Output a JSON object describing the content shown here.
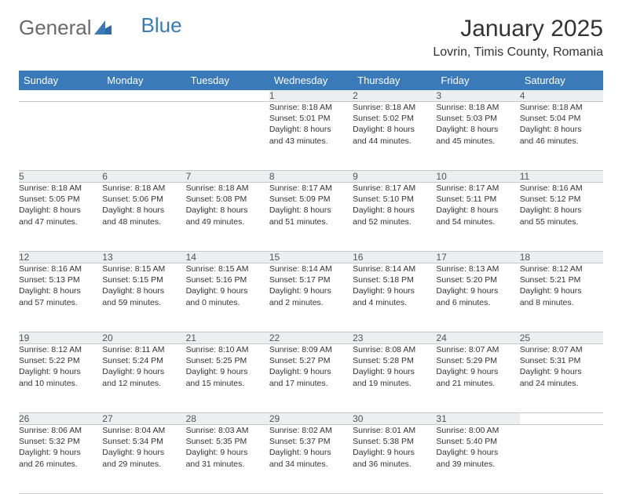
{
  "logo": {
    "text1": "General",
    "text2": "Blue"
  },
  "title": "January 2025",
  "location": "Lovrin, Timis County, Romania",
  "colors": {
    "header_bg": "#3a7ab8",
    "header_fg": "#ffffff",
    "daynum_bg": "#edeef0",
    "border": "#c8c8c8",
    "text": "#333333"
  },
  "weekdays": [
    "Sunday",
    "Monday",
    "Tuesday",
    "Wednesday",
    "Thursday",
    "Friday",
    "Saturday"
  ],
  "weeks": [
    [
      null,
      null,
      null,
      {
        "n": "1",
        "sr": "Sunrise: 8:18 AM",
        "ss": "Sunset: 5:01 PM",
        "d1": "Daylight: 8 hours",
        "d2": "and 43 minutes."
      },
      {
        "n": "2",
        "sr": "Sunrise: 8:18 AM",
        "ss": "Sunset: 5:02 PM",
        "d1": "Daylight: 8 hours",
        "d2": "and 44 minutes."
      },
      {
        "n": "3",
        "sr": "Sunrise: 8:18 AM",
        "ss": "Sunset: 5:03 PM",
        "d1": "Daylight: 8 hours",
        "d2": "and 45 minutes."
      },
      {
        "n": "4",
        "sr": "Sunrise: 8:18 AM",
        "ss": "Sunset: 5:04 PM",
        "d1": "Daylight: 8 hours",
        "d2": "and 46 minutes."
      }
    ],
    [
      {
        "n": "5",
        "sr": "Sunrise: 8:18 AM",
        "ss": "Sunset: 5:05 PM",
        "d1": "Daylight: 8 hours",
        "d2": "and 47 minutes."
      },
      {
        "n": "6",
        "sr": "Sunrise: 8:18 AM",
        "ss": "Sunset: 5:06 PM",
        "d1": "Daylight: 8 hours",
        "d2": "and 48 minutes."
      },
      {
        "n": "7",
        "sr": "Sunrise: 8:18 AM",
        "ss": "Sunset: 5:08 PM",
        "d1": "Daylight: 8 hours",
        "d2": "and 49 minutes."
      },
      {
        "n": "8",
        "sr": "Sunrise: 8:17 AM",
        "ss": "Sunset: 5:09 PM",
        "d1": "Daylight: 8 hours",
        "d2": "and 51 minutes."
      },
      {
        "n": "9",
        "sr": "Sunrise: 8:17 AM",
        "ss": "Sunset: 5:10 PM",
        "d1": "Daylight: 8 hours",
        "d2": "and 52 minutes."
      },
      {
        "n": "10",
        "sr": "Sunrise: 8:17 AM",
        "ss": "Sunset: 5:11 PM",
        "d1": "Daylight: 8 hours",
        "d2": "and 54 minutes."
      },
      {
        "n": "11",
        "sr": "Sunrise: 8:16 AM",
        "ss": "Sunset: 5:12 PM",
        "d1": "Daylight: 8 hours",
        "d2": "and 55 minutes."
      }
    ],
    [
      {
        "n": "12",
        "sr": "Sunrise: 8:16 AM",
        "ss": "Sunset: 5:13 PM",
        "d1": "Daylight: 8 hours",
        "d2": "and 57 minutes."
      },
      {
        "n": "13",
        "sr": "Sunrise: 8:15 AM",
        "ss": "Sunset: 5:15 PM",
        "d1": "Daylight: 8 hours",
        "d2": "and 59 minutes."
      },
      {
        "n": "14",
        "sr": "Sunrise: 8:15 AM",
        "ss": "Sunset: 5:16 PM",
        "d1": "Daylight: 9 hours",
        "d2": "and 0 minutes."
      },
      {
        "n": "15",
        "sr": "Sunrise: 8:14 AM",
        "ss": "Sunset: 5:17 PM",
        "d1": "Daylight: 9 hours",
        "d2": "and 2 minutes."
      },
      {
        "n": "16",
        "sr": "Sunrise: 8:14 AM",
        "ss": "Sunset: 5:18 PM",
        "d1": "Daylight: 9 hours",
        "d2": "and 4 minutes."
      },
      {
        "n": "17",
        "sr": "Sunrise: 8:13 AM",
        "ss": "Sunset: 5:20 PM",
        "d1": "Daylight: 9 hours",
        "d2": "and 6 minutes."
      },
      {
        "n": "18",
        "sr": "Sunrise: 8:12 AM",
        "ss": "Sunset: 5:21 PM",
        "d1": "Daylight: 9 hours",
        "d2": "and 8 minutes."
      }
    ],
    [
      {
        "n": "19",
        "sr": "Sunrise: 8:12 AM",
        "ss": "Sunset: 5:22 PM",
        "d1": "Daylight: 9 hours",
        "d2": "and 10 minutes."
      },
      {
        "n": "20",
        "sr": "Sunrise: 8:11 AM",
        "ss": "Sunset: 5:24 PM",
        "d1": "Daylight: 9 hours",
        "d2": "and 12 minutes."
      },
      {
        "n": "21",
        "sr": "Sunrise: 8:10 AM",
        "ss": "Sunset: 5:25 PM",
        "d1": "Daylight: 9 hours",
        "d2": "and 15 minutes."
      },
      {
        "n": "22",
        "sr": "Sunrise: 8:09 AM",
        "ss": "Sunset: 5:27 PM",
        "d1": "Daylight: 9 hours",
        "d2": "and 17 minutes."
      },
      {
        "n": "23",
        "sr": "Sunrise: 8:08 AM",
        "ss": "Sunset: 5:28 PM",
        "d1": "Daylight: 9 hours",
        "d2": "and 19 minutes."
      },
      {
        "n": "24",
        "sr": "Sunrise: 8:07 AM",
        "ss": "Sunset: 5:29 PM",
        "d1": "Daylight: 9 hours",
        "d2": "and 21 minutes."
      },
      {
        "n": "25",
        "sr": "Sunrise: 8:07 AM",
        "ss": "Sunset: 5:31 PM",
        "d1": "Daylight: 9 hours",
        "d2": "and 24 minutes."
      }
    ],
    [
      {
        "n": "26",
        "sr": "Sunrise: 8:06 AM",
        "ss": "Sunset: 5:32 PM",
        "d1": "Daylight: 9 hours",
        "d2": "and 26 minutes."
      },
      {
        "n": "27",
        "sr": "Sunrise: 8:04 AM",
        "ss": "Sunset: 5:34 PM",
        "d1": "Daylight: 9 hours",
        "d2": "and 29 minutes."
      },
      {
        "n": "28",
        "sr": "Sunrise: 8:03 AM",
        "ss": "Sunset: 5:35 PM",
        "d1": "Daylight: 9 hours",
        "d2": "and 31 minutes."
      },
      {
        "n": "29",
        "sr": "Sunrise: 8:02 AM",
        "ss": "Sunset: 5:37 PM",
        "d1": "Daylight: 9 hours",
        "d2": "and 34 minutes."
      },
      {
        "n": "30",
        "sr": "Sunrise: 8:01 AM",
        "ss": "Sunset: 5:38 PM",
        "d1": "Daylight: 9 hours",
        "d2": "and 36 minutes."
      },
      {
        "n": "31",
        "sr": "Sunrise: 8:00 AM",
        "ss": "Sunset: 5:40 PM",
        "d1": "Daylight: 9 hours",
        "d2": "and 39 minutes."
      },
      null
    ]
  ]
}
